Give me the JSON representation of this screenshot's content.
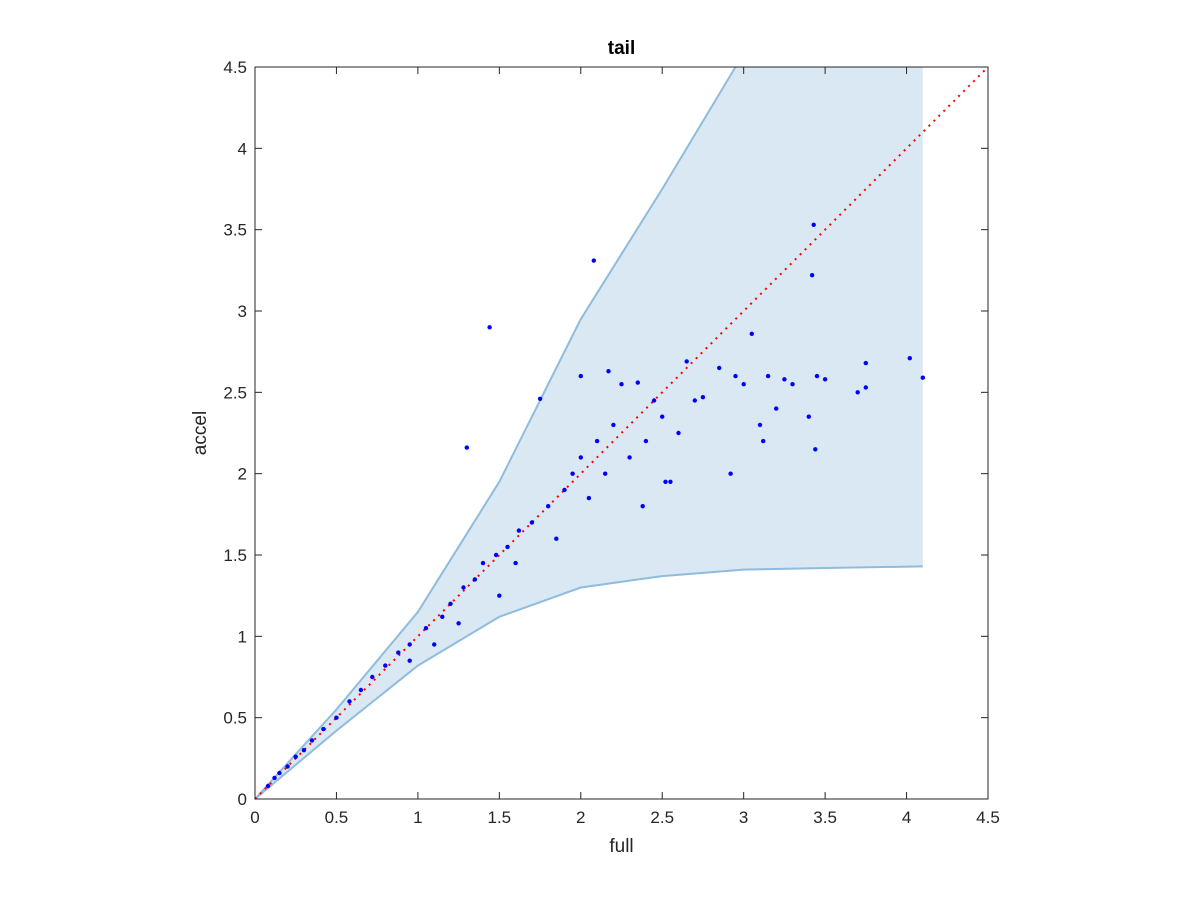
{
  "chart_data": {
    "type": "scatter",
    "title": "tail",
    "xlabel": "full",
    "ylabel": "accel",
    "xlim": [
      0,
      4.5
    ],
    "ylim": [
      0,
      4.5
    ],
    "xticks": [
      0,
      0.5,
      1,
      1.5,
      2,
      2.5,
      3,
      3.5,
      4,
      4.5
    ],
    "yticks": [
      0,
      0.5,
      1,
      1.5,
      2,
      2.5,
      3,
      3.5,
      4,
      4.5
    ],
    "xtick_labels": [
      "0",
      "0.5",
      "1",
      "1.5",
      "2",
      "2.5",
      "3",
      "3.5",
      "4",
      "4.5"
    ],
    "ytick_labels": [
      "0",
      "0.5",
      "1",
      "1.5",
      "2",
      "2.5",
      "3",
      "3.5",
      "4",
      "4.5"
    ],
    "grid": false,
    "colors": {
      "points": "#0000ff",
      "band_fill": "#d9e8f3",
      "band_edge": "#8fbcdd",
      "reference_line": "#ff0000",
      "axes": "#262626"
    },
    "band": {
      "upper": [
        [
          0,
          0
        ],
        [
          0.5,
          0.55
        ],
        [
          1,
          1.15
        ],
        [
          1.5,
          1.95
        ],
        [
          2,
          2.95
        ],
        [
          2.5,
          3.75
        ],
        [
          2.95,
          4.5
        ],
        [
          4.1,
          4.5
        ]
      ],
      "lower": [
        [
          0,
          0
        ],
        [
          0.5,
          0.42
        ],
        [
          1,
          0.82
        ],
        [
          1.5,
          1.12
        ],
        [
          2,
          1.3
        ],
        [
          2.5,
          1.37
        ],
        [
          3,
          1.41
        ],
        [
          3.5,
          1.42
        ],
        [
          4.1,
          1.43
        ]
      ]
    },
    "reference_line": {
      "style": "dotted",
      "from": [
        0,
        0
      ],
      "to": [
        4.5,
        4.5
      ]
    },
    "points": {
      "x": [
        1.44,
        2.08,
        1.3,
        3.43,
        3.42,
        3.05,
        1.75,
        0.08,
        0.12,
        0.15,
        0.2,
        0.25,
        0.3,
        0.35,
        0.42,
        0.5,
        0.58,
        0.65,
        0.72,
        0.8,
        0.88,
        0.95,
        1.05,
        1.15,
        1.2,
        1.28,
        1.35,
        1.4,
        1.48,
        1.55,
        1.62,
        1.7,
        1.8,
        1.9,
        1.95,
        2.0,
        2.1,
        2.15,
        2.2,
        2.3,
        2.4,
        2.5,
        2.55,
        2.6,
        2.7,
        2.85,
        3.0,
        3.1,
        3.2,
        3.3,
        3.45,
        3.5,
        3.7,
        3.75,
        4.02,
        4.1,
        2.0,
        2.17,
        2.25,
        2.35,
        2.45,
        2.65,
        2.75,
        2.95,
        3.15,
        3.25,
        3.4,
        1.6,
        1.85,
        2.05,
        2.38,
        2.52,
        2.92,
        3.12,
        3.44,
        3.75,
        1.1,
        1.25,
        1.5,
        0.95
      ],
      "y": [
        2.9,
        3.31,
        2.16,
        3.53,
        3.22,
        2.86,
        2.46,
        0.08,
        0.13,
        0.16,
        0.2,
        0.26,
        0.3,
        0.36,
        0.43,
        0.5,
        0.6,
        0.67,
        0.75,
        0.82,
        0.9,
        0.95,
        1.05,
        1.12,
        1.2,
        1.3,
        1.35,
        1.45,
        1.5,
        1.55,
        1.65,
        1.7,
        1.8,
        1.9,
        2.0,
        2.1,
        2.2,
        2.0,
        2.3,
        2.1,
        2.2,
        2.35,
        1.95,
        2.25,
        2.45,
        2.65,
        2.55,
        2.3,
        2.4,
        2.55,
        2.6,
        2.58,
        2.5,
        2.68,
        2.71,
        2.59,
        2.6,
        2.63,
        2.55,
        2.56,
        2.45,
        2.69,
        2.47,
        2.6,
        2.6,
        2.58,
        2.35,
        1.45,
        1.6,
        1.85,
        1.8,
        1.95,
        2.0,
        2.2,
        2.15,
        2.53,
        0.95,
        1.08,
        1.25,
        0.85
      ]
    }
  }
}
